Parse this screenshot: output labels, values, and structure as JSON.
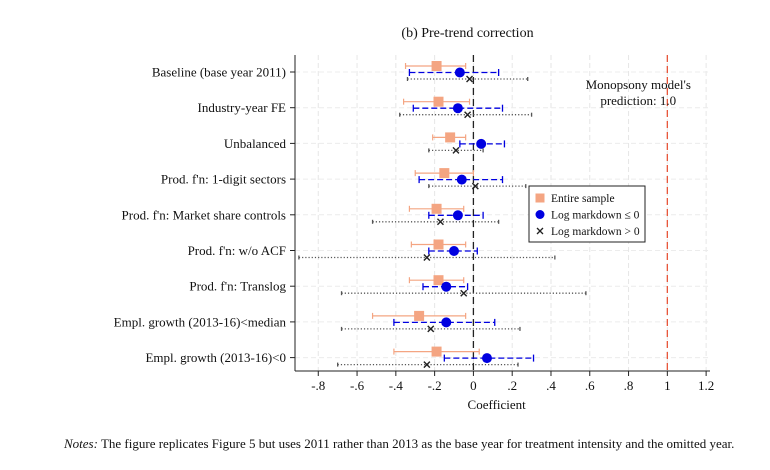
{
  "chart_data": {
    "type": "forest-plot",
    "title": "(b) Pre-trend correction",
    "xlabel": "Coefficient",
    "xlim": [
      -0.92,
      1.22
    ],
    "xticks": [
      -0.8,
      -0.6,
      -0.4,
      -0.2,
      0,
      0.2,
      0.4,
      0.6,
      0.8,
      1,
      1.2
    ],
    "xtick_labels": [
      "-.8",
      "-.6",
      "-.4",
      "-.2",
      "0",
      ".2",
      ".4",
      ".6",
      ".8",
      "1",
      "1.2"
    ],
    "grid": true,
    "reference_zero": 0,
    "prediction_line": 1.0,
    "annotation_lines": [
      "Monopsony model's",
      "prediction: 1.0"
    ],
    "legend_position": "right",
    "series": [
      {
        "name": "Entire sample",
        "color": "#f4a582",
        "marker": "square"
      },
      {
        "name": "Log markdown ≤ 0",
        "color": "#0000e0",
        "marker": "circle"
      },
      {
        "name": "Log markdown > 0",
        "color": "#222222",
        "marker": "x"
      }
    ],
    "rows": [
      {
        "label": "Baseline (base year 2011)",
        "entire": {
          "est": -0.19,
          "lo": -0.35,
          "hi": -0.04
        },
        "le0": {
          "est": -0.07,
          "lo": -0.33,
          "hi": 0.13
        },
        "gt0": {
          "est": -0.02,
          "lo": -0.34,
          "hi": 0.28
        }
      },
      {
        "label": "Industry-year FE",
        "entire": {
          "est": -0.18,
          "lo": -0.36,
          "hi": -0.02
        },
        "le0": {
          "est": -0.08,
          "lo": -0.31,
          "hi": 0.15
        },
        "gt0": {
          "est": -0.03,
          "lo": -0.38,
          "hi": 0.3
        }
      },
      {
        "label": "Unbalanced",
        "entire": {
          "est": -0.12,
          "lo": -0.21,
          "hi": -0.04
        },
        "le0": {
          "est": 0.04,
          "lo": -0.07,
          "hi": 0.16
        },
        "gt0": {
          "est": -0.09,
          "lo": -0.23,
          "hi": 0.05
        }
      },
      {
        "label": "Prod. f'n: 1-digit sectors",
        "entire": {
          "est": -0.15,
          "lo": -0.3,
          "hi": 0.0
        },
        "le0": {
          "est": -0.06,
          "lo": -0.28,
          "hi": 0.15
        },
        "gt0": {
          "est": 0.01,
          "lo": -0.23,
          "hi": 0.27
        }
      },
      {
        "label": "Prod. f'n: Market share controls",
        "entire": {
          "est": -0.19,
          "lo": -0.33,
          "hi": -0.05
        },
        "le0": {
          "est": -0.08,
          "lo": -0.23,
          "hi": 0.05
        },
        "gt0": {
          "est": -0.17,
          "lo": -0.52,
          "hi": 0.13
        }
      },
      {
        "label": "Prod. f'n: w/o ACF",
        "entire": {
          "est": -0.18,
          "lo": -0.32,
          "hi": -0.04
        },
        "le0": {
          "est": -0.1,
          "lo": -0.23,
          "hi": 0.02
        },
        "gt0": {
          "est": -0.24,
          "lo": -0.9,
          "hi": 0.42
        }
      },
      {
        "label": "Prod. f'n: Translog",
        "entire": {
          "est": -0.18,
          "lo": -0.33,
          "hi": -0.05
        },
        "le0": {
          "est": -0.14,
          "lo": -0.26,
          "hi": -0.03
        },
        "gt0": {
          "est": -0.05,
          "lo": -0.68,
          "hi": 0.58
        }
      },
      {
        "label": "Empl. growth (2013-16)<median",
        "entire": {
          "est": -0.28,
          "lo": -0.52,
          "hi": -0.04
        },
        "le0": {
          "est": -0.14,
          "lo": -0.41,
          "hi": 0.11
        },
        "gt0": {
          "est": -0.22,
          "lo": -0.68,
          "hi": 0.24
        }
      },
      {
        "label": "Empl. growth (2013-16)<0",
        "entire": {
          "est": -0.19,
          "lo": -0.41,
          "hi": 0.03
        },
        "le0": {
          "est": 0.07,
          "lo": -0.15,
          "hi": 0.31
        },
        "gt0": {
          "est": -0.24,
          "lo": -0.7,
          "hi": 0.23
        }
      }
    ]
  },
  "notes": {
    "label": "Notes:",
    "text": "The figure replicates Figure 5 but uses 2011 rather than 2013 as the base year for treatment intensity and the omitted year."
  }
}
